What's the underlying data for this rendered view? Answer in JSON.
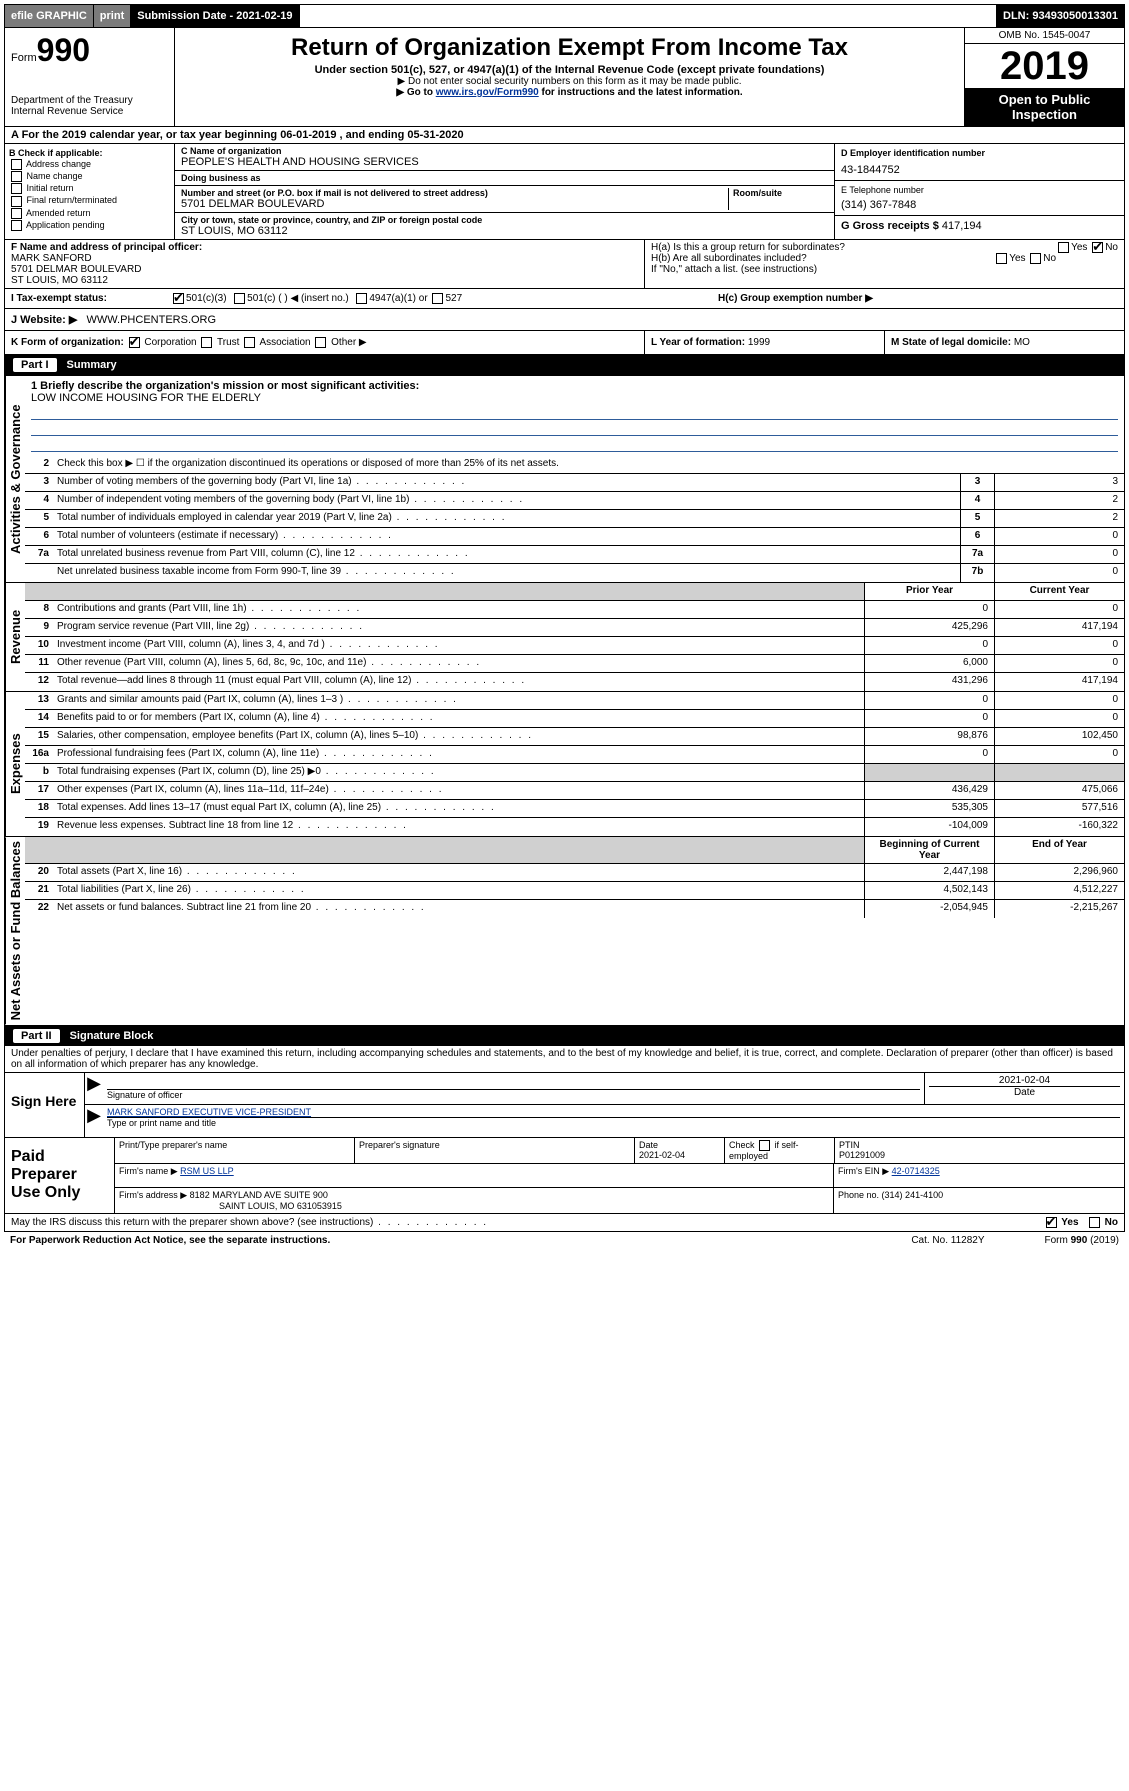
{
  "topbar": {
    "efile": "efile GRAPHIC",
    "print": "print",
    "submission": "Submission Date - 2021-02-19",
    "dln": "DLN: 93493050013301"
  },
  "header": {
    "form_prefix": "Form",
    "form_number": "990",
    "dept1": "Department of the Treasury",
    "dept2": "Internal Revenue Service",
    "title": "Return of Organization Exempt From Income Tax",
    "subtitle": "Under section 501(c), 527, or 4947(a)(1) of the Internal Revenue Code (except private foundations)",
    "note1": "▶ Do not enter social security numbers on this form as it may be made public.",
    "note2_pre": "▶ Go to ",
    "note2_link": "www.irs.gov/Form990",
    "note2_post": " for instructions and the latest information.",
    "omb": "OMB No. 1545-0047",
    "year": "2019",
    "inspection1": "Open to Public",
    "inspection2": "Inspection"
  },
  "sectionA": "A  For the 2019 calendar year, or tax year beginning 06-01-2019    , and ending 05-31-2020",
  "boxB": {
    "label": "B Check if applicable:",
    "opts": [
      "Address change",
      "Name change",
      "Initial return",
      "Final return/terminated",
      "Amended return",
      "Application pending"
    ]
  },
  "boxC": {
    "name_lbl": "C Name of organization",
    "name": "PEOPLE'S HEALTH AND HOUSING SERVICES",
    "dba_lbl": "Doing business as",
    "dba": "",
    "addr_lbl": "Number and street (or P.O. box if mail is not delivered to street address)",
    "room_lbl": "Room/suite",
    "addr": "5701 DELMAR BOULEVARD",
    "city_lbl": "City or town, state or province, country, and ZIP or foreign postal code",
    "city": "ST LOUIS, MO  63112"
  },
  "boxD": {
    "ein_lbl": "D Employer identification number",
    "ein": "43-1844752",
    "phone_lbl": "E Telephone number",
    "phone": "(314) 367-7848",
    "gross_lbl": "G Gross receipts $ ",
    "gross": "417,194"
  },
  "boxF": {
    "lbl": "F  Name and address of principal officer:",
    "name": "MARK SANFORD",
    "addr1": "5701 DELMAR BOULEVARD",
    "addr2": "ST LOUIS, MO  63112"
  },
  "boxH": {
    "ha": "H(a)  Is this a group return for subordinates?",
    "hb": "H(b)  Are all subordinates included?",
    "hb_note": "If \"No,\" attach a list. (see instructions)",
    "hc": "H(c)  Group exemption number ▶",
    "yes": "Yes",
    "no": "No"
  },
  "boxI": {
    "lbl": "I    Tax-exempt status:",
    "o1": "501(c)(3)",
    "o2": "501(c) (  ) ◀ (insert no.)",
    "o3": "4947(a)(1) or",
    "o4": "527"
  },
  "boxJ": {
    "lbl": "J    Website: ▶",
    "val": "WWW.PHCENTERS.ORG"
  },
  "boxK": {
    "lbl": "K Form of organization:",
    "o1": "Corporation",
    "o2": "Trust",
    "o3": "Association",
    "o4": "Other ▶"
  },
  "boxL": {
    "lbl": "L Year of formation: ",
    "val": "1999"
  },
  "boxM": {
    "lbl": "M State of legal domicile:",
    "val": "MO"
  },
  "part1": {
    "num": "Part I",
    "title": "Summary"
  },
  "mission": {
    "lbl": "1  Briefly describe the organization's mission or most significant activities:",
    "val": "LOW INCOME HOUSING FOR THE ELDERLY"
  },
  "line2": "Check this box ▶ ☐  if the organization discontinued its operations or disposed of more than 25% of its net assets.",
  "vtabs": {
    "gov": "Activities & Governance",
    "rev": "Revenue",
    "exp": "Expenses",
    "net": "Net Assets or Fund Balances"
  },
  "lines_gov": [
    {
      "n": "3",
      "t": "Number of voting members of the governing body (Part VI, line 1a)",
      "k": "3",
      "v": "3"
    },
    {
      "n": "4",
      "t": "Number of independent voting members of the governing body (Part VI, line 1b)",
      "k": "4",
      "v": "2"
    },
    {
      "n": "5",
      "t": "Total number of individuals employed in calendar year 2019 (Part V, line 2a)",
      "k": "5",
      "v": "2"
    },
    {
      "n": "6",
      "t": "Total number of volunteers (estimate if necessary)",
      "k": "6",
      "v": "0"
    },
    {
      "n": "7a",
      "t": "Total unrelated business revenue from Part VIII, column (C), line 12",
      "k": "7a",
      "v": "0"
    },
    {
      "n": "",
      "t": "Net unrelated business taxable income from Form 990-T, line 39",
      "k": "7b",
      "v": "0"
    }
  ],
  "col_headers": {
    "prior": "Prior Year",
    "current": "Current Year",
    "bcy": "Beginning of Current Year",
    "eoy": "End of Year"
  },
  "lines_rev": [
    {
      "n": "8",
      "t": "Contributions and grants (Part VIII, line 1h)",
      "p": "0",
      "c": "0"
    },
    {
      "n": "9",
      "t": "Program service revenue (Part VIII, line 2g)",
      "p": "425,296",
      "c": "417,194"
    },
    {
      "n": "10",
      "t": "Investment income (Part VIII, column (A), lines 3, 4, and 7d )",
      "p": "0",
      "c": "0"
    },
    {
      "n": "11",
      "t": "Other revenue (Part VIII, column (A), lines 5, 6d, 8c, 9c, 10c, and 11e)",
      "p": "6,000",
      "c": "0"
    },
    {
      "n": "12",
      "t": "Total revenue—add lines 8 through 11 (must equal Part VIII, column (A), line 12)",
      "p": "431,296",
      "c": "417,194"
    }
  ],
  "lines_exp": [
    {
      "n": "13",
      "t": "Grants and similar amounts paid (Part IX, column (A), lines 1–3 )",
      "p": "0",
      "c": "0"
    },
    {
      "n": "14",
      "t": "Benefits paid to or for members (Part IX, column (A), line 4)",
      "p": "0",
      "c": "0"
    },
    {
      "n": "15",
      "t": "Salaries, other compensation, employee benefits (Part IX, column (A), lines 5–10)",
      "p": "98,876",
      "c": "102,450"
    },
    {
      "n": "16a",
      "t": "Professional fundraising fees (Part IX, column (A), line 11e)",
      "p": "0",
      "c": "0"
    },
    {
      "n": "b",
      "t": "Total fundraising expenses (Part IX, column (D), line 25) ▶0",
      "p": "",
      "c": "",
      "shade": true
    },
    {
      "n": "17",
      "t": "Other expenses (Part IX, column (A), lines 11a–11d, 11f–24e)",
      "p": "436,429",
      "c": "475,066"
    },
    {
      "n": "18",
      "t": "Total expenses. Add lines 13–17 (must equal Part IX, column (A), line 25)",
      "p": "535,305",
      "c": "577,516"
    },
    {
      "n": "19",
      "t": "Revenue less expenses. Subtract line 18 from line 12",
      "p": "-104,009",
      "c": "-160,322"
    }
  ],
  "lines_net": [
    {
      "n": "20",
      "t": "Total assets (Part X, line 16)",
      "p": "2,447,198",
      "c": "2,296,960"
    },
    {
      "n": "21",
      "t": "Total liabilities (Part X, line 26)",
      "p": "4,502,143",
      "c": "4,512,227"
    },
    {
      "n": "22",
      "t": "Net assets or fund balances. Subtract line 21 from line 20",
      "p": "-2,054,945",
      "c": "-2,215,267"
    }
  ],
  "part2": {
    "num": "Part II",
    "title": "Signature Block"
  },
  "perjury": "Under penalties of perjury, I declare that I have examined this return, including accompanying schedules and statements, and to the best of my knowledge and belief, it is true, correct, and complete. Declaration of preparer (other than officer) is based on all information of which preparer has any knowledge.",
  "sign": {
    "here": "Sign Here",
    "sig_lbl": "Signature of officer",
    "date": "2021-02-04",
    "date_lbl": "Date",
    "name": "MARK SANFORD  EXECUTIVE VICE-PRESIDENT",
    "name_lbl": "Type or print name and title"
  },
  "prep": {
    "title": "Paid Preparer Use Only",
    "h1": "Print/Type preparer's name",
    "h2": "Preparer's signature",
    "h3": "Date",
    "date": "2021-02-04",
    "h4_pre": "Check",
    "h4_post": "if self-employed",
    "h5": "PTIN",
    "ptin": "P01291009",
    "firm_lbl": "Firm's name    ▶",
    "firm": "RSM US LLP",
    "ein_lbl": "Firm's EIN ▶",
    "ein": "42-0714325",
    "addr_lbl": "Firm's address ▶",
    "addr1": "8182 MARYLAND AVE SUITE 900",
    "addr2": "SAINT LOUIS, MO  631053915",
    "phone_lbl": "Phone no. ",
    "phone": "(314) 241-4100"
  },
  "footer": {
    "discuss": "May the IRS discuss this return with the preparer shown above? (see instructions)",
    "yes": "Yes",
    "no": "No",
    "paperwork": "For Paperwork Reduction Act Notice, see the separate instructions.",
    "cat": "Cat. No. 11282Y",
    "form": "Form 990 (2019)"
  }
}
